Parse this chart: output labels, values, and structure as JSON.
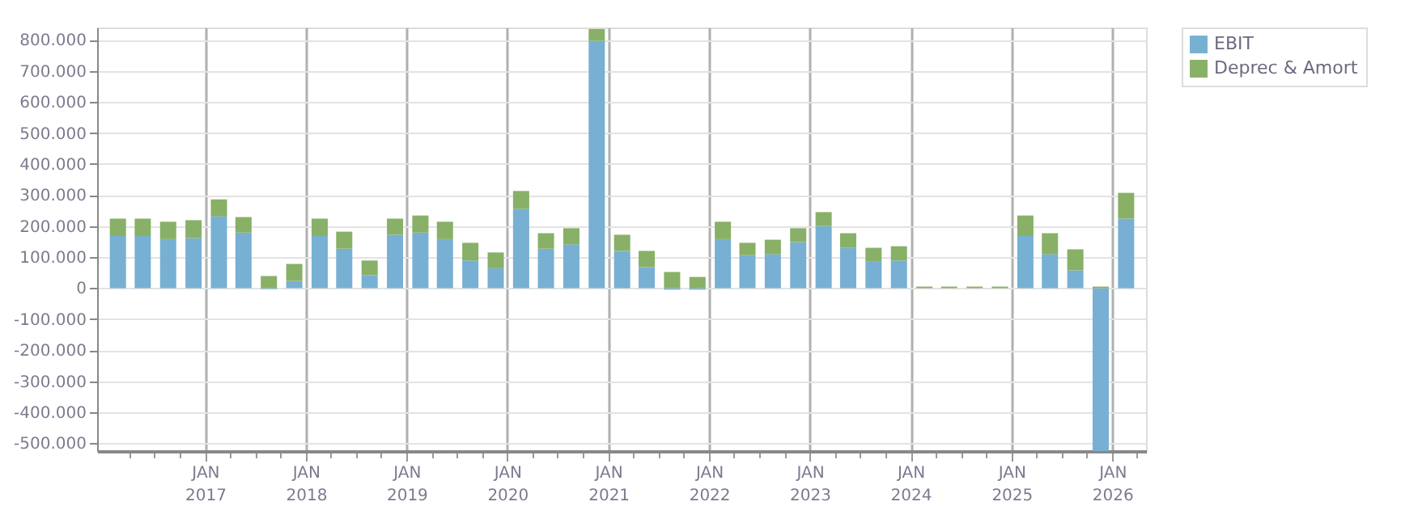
{
  "chart_data": {
    "type": "bar",
    "stacked": true,
    "x": [
      "2016-02-20",
      "2016-05-20",
      "2016-08-20",
      "2016-11-20",
      "2017-02-20",
      "2017-05-20",
      "2017-08-20",
      "2017-11-20",
      "2018-02-20",
      "2018-05-20",
      "2018-08-20",
      "2018-11-20",
      "2019-02-20",
      "2019-05-20",
      "2019-08-20",
      "2019-11-20",
      "2020-02-20",
      "2020-05-20",
      "2020-08-20",
      "2020-11-20",
      "2021-02-20",
      "2021-05-20",
      "2021-08-20",
      "2021-11-20",
      "2022-02-20",
      "2022-05-20",
      "2022-08-20",
      "2022-11-20",
      "2023-02-20",
      "2023-05-20",
      "2023-08-20",
      "2023-11-20",
      "2024-02-20",
      "2024-05-20",
      "2024-08-20",
      "2024-11-20",
      "2025-02-20",
      "2025-05-20",
      "2025-08-20",
      "2025-11-20",
      "2026-02-20"
    ],
    "series": [
      {
        "name": "EBIT",
        "color": "#77b0d3",
        "values": [
          168000,
          168000,
          158000,
          161000,
          231000,
          179000,
          -3000,
          23000,
          168000,
          127000,
          42000,
          172000,
          179000,
          158000,
          89000,
          64000,
          255000,
          127000,
          141000,
          797000,
          120000,
          68000,
          -5000,
          -5000,
          158000,
          106000,
          109000,
          148000,
          200000,
          130000,
          85000,
          89000,
          0,
          0,
          0,
          0,
          168000,
          109000,
          57000,
          -525000,
          224000
        ]
      },
      {
        "name": "Deprec & Amort",
        "color": "#88b067",
        "values": [
          56000,
          56000,
          56000,
          58000,
          55000,
          50000,
          39000,
          55000,
          56000,
          55000,
          47000,
          52000,
          55000,
          56000,
          57000,
          51000,
          58000,
          50000,
          52000,
          38000,
          52000,
          52000,
          52000,
          36000,
          56000,
          40000,
          47000,
          45000,
          45000,
          47000,
          45000,
          46000,
          5000,
          5000,
          5000,
          5000,
          66000,
          68000,
          68000,
          5000,
          83000
        ]
      }
    ],
    "ylim": [
      -525000,
      840000
    ],
    "yticks": [
      {
        "value": -500000,
        "label": "-500.000"
      },
      {
        "value": -400000,
        "label": "-400.000"
      },
      {
        "value": -300000,
        "label": "-300.000"
      },
      {
        "value": -200000,
        "label": "-200.000"
      },
      {
        "value": -100000,
        "label": "-100.000"
      },
      0,
      {
        "value": 100000,
        "label": "100.000"
      },
      {
        "value": 200000,
        "label": "200.000"
      },
      {
        "value": 300000,
        "label": "300.000"
      },
      {
        "value": 400000,
        "label": "400.000"
      },
      {
        "value": 500000,
        "label": "500.000"
      },
      {
        "value": 600000,
        "label": "600.000"
      },
      {
        "value": 700000,
        "label": "700.000"
      },
      {
        "value": 800000,
        "label": "800.000"
      }
    ],
    "xlim": [
      "2016-01-05",
      "2026-04-04"
    ],
    "xticks": [
      {
        "value": "2016-04-01",
        "label": null
      },
      {
        "value": "2016-07-01",
        "label": null
      },
      {
        "value": "2016-10-01",
        "label": null
      },
      {
        "value": "2017-01-01",
        "label": "JAN\n2017"
      },
      {
        "value": "2017-04-01",
        "label": null
      },
      {
        "value": "2017-07-01",
        "label": null
      },
      {
        "value": "2017-10-01",
        "label": null
      },
      {
        "value": "2018-01-01",
        "label": "JAN\n2018"
      },
      {
        "value": "2018-04-01",
        "label": null
      },
      {
        "value": "2018-07-01",
        "label": null
      },
      {
        "value": "2018-10-01",
        "label": null
      },
      {
        "value": "2019-01-01",
        "label": "JAN\n2019"
      },
      {
        "value": "2019-04-01",
        "label": null
      },
      {
        "value": "2019-07-01",
        "label": null
      },
      {
        "value": "2019-10-01",
        "label": null
      },
      {
        "value": "2020-01-01",
        "label": "JAN\n2020"
      },
      {
        "value": "2020-04-01",
        "label": null
      },
      {
        "value": "2020-07-01",
        "label": null
      },
      {
        "value": "2020-10-01",
        "label": null
      },
      {
        "value": "2021-01-01",
        "label": "JAN\n2021"
      },
      {
        "value": "2021-04-01",
        "label": null
      },
      {
        "value": "2021-07-01",
        "label": null
      },
      {
        "value": "2021-10-01",
        "label": null
      },
      {
        "value": "2022-01-01",
        "label": "JAN\n2022"
      },
      {
        "value": "2022-04-01",
        "label": null
      },
      {
        "value": "2022-07-01",
        "label": null
      },
      {
        "value": "2022-10-01",
        "label": null
      },
      {
        "value": "2023-01-01",
        "label": "JAN\n2023"
      },
      {
        "value": "2023-04-01",
        "label": null
      },
      {
        "value": "2023-07-01",
        "label": null
      },
      {
        "value": "2023-10-01",
        "label": null
      },
      {
        "value": "2024-01-01",
        "label": "JAN\n2024"
      },
      {
        "value": "2024-04-01",
        "label": null
      },
      {
        "value": "2024-07-01",
        "label": null
      },
      {
        "value": "2024-10-01",
        "label": null
      },
      {
        "value": "2025-01-01",
        "label": "JAN\n2025"
      },
      {
        "value": "2025-04-01",
        "label": null
      },
      {
        "value": "2025-07-01",
        "label": null
      },
      {
        "value": "2025-10-01",
        "label": null
      },
      {
        "value": "2026-01-01",
        "label": "JAN\n2026"
      },
      {
        "value": "2026-04-01",
        "label": null
      }
    ],
    "grid": true,
    "legend": "top right"
  }
}
